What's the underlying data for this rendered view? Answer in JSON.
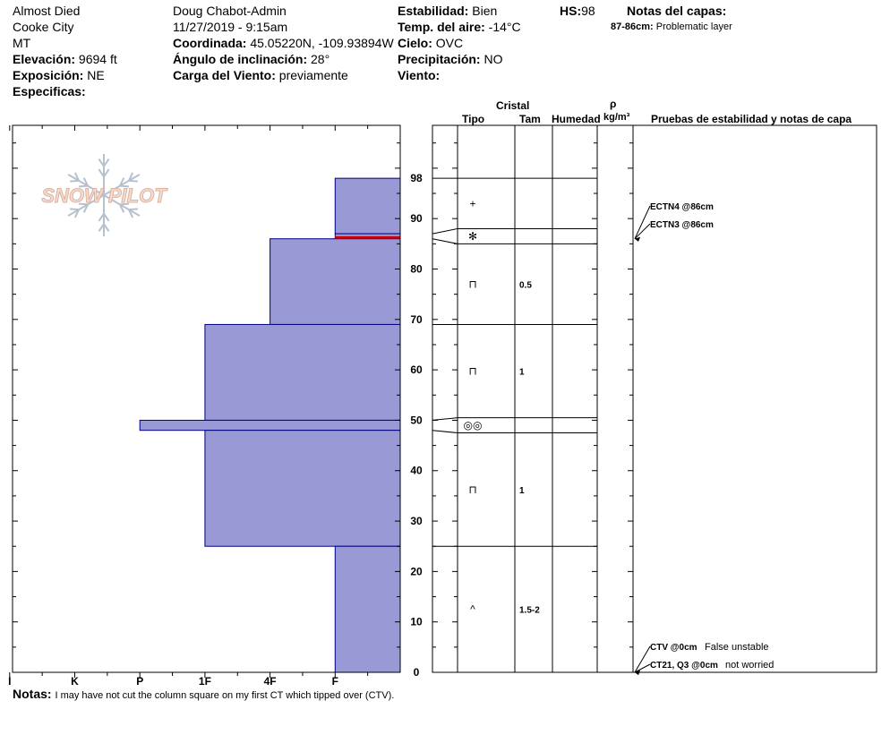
{
  "header": {
    "location": "Almost Died",
    "city": "Cooke City",
    "state": "MT",
    "elevation_label": "Elevación:",
    "elevation_value": "9694 ft",
    "aspect_label": "Exposición:",
    "aspect_value": "NE",
    "specifics_label": "Especificas:",
    "observer": "Doug Chabot-Admin",
    "datetime": "11/27/2019 - 9:15am",
    "coord_label": "Coordinada:",
    "coord_value": "45.05220N, -109.93894W",
    "incline_label": "Ángulo de inclinación:",
    "incline_value": "28°",
    "wind_load_label": "Carga del Viento:",
    "wind_load_value": "previamente",
    "stability_label": "Estabilidad:",
    "stability_value": "Bien",
    "air_temp_label": "Temp. del aire:",
    "air_temp_value": "-14°C",
    "sky_label": "Cielo:",
    "sky_value": "OVC",
    "precip_label": "Precipitación:",
    "precip_value": "NO",
    "wind_label": "Viento:",
    "hs_label": "HS:",
    "hs_value": "98",
    "layer_notes_title": "Notas del capas:",
    "layer_note_range": "87-86cm:",
    "layer_note_text": "Problematic layer"
  },
  "logo_text": "SNOW PILOT",
  "columns": {
    "crystal": "Cristal",
    "type": "Tipo",
    "size": "Tam",
    "moisture": "Humedad",
    "rho": "ρ",
    "density_unit": "kg/m³",
    "tests_title": "Pruebas de estabilidad y notas de capa"
  },
  "notes_label": "Notas:",
  "notes_text": "I may have not cut the column square on my first CT which tipped over (CTV).",
  "colors": {
    "fill": "#9999d6",
    "stroke": "#000080",
    "problem": "#cc0000"
  },
  "chart_data": {
    "type": "bar",
    "orientation": "horizontal",
    "ylim": [
      0,
      98
    ],
    "yticks": [
      0,
      10,
      20,
      30,
      40,
      50,
      60,
      70,
      80,
      90,
      98
    ],
    "hardness_scale": [
      "I",
      "K",
      "P",
      "1F",
      "4F",
      "F"
    ],
    "hardness_scale_index": {
      "F": 1,
      "4F": 2,
      "1F": 3,
      "P": 4,
      "K": 5,
      "I": 6
    },
    "hardness_layers": [
      {
        "top": 98,
        "bottom": 87,
        "hardness": "F"
      },
      {
        "top": 87,
        "bottom": 86,
        "hardness": "F"
      },
      {
        "top": 86,
        "bottom": 69,
        "hardness": "4F"
      },
      {
        "top": 69,
        "bottom": 50,
        "hardness": "1F"
      },
      {
        "top": 50,
        "bottom": 48,
        "hardness": "P"
      },
      {
        "top": 48,
        "bottom": 25,
        "hardness": "1F"
      },
      {
        "top": 25,
        "bottom": 0,
        "hardness": "F"
      }
    ],
    "problem_layer": [
      86.5,
      86
    ],
    "crystal_layers": [
      {
        "top": 98,
        "bottom": 88,
        "mark": "+",
        "size": "",
        "left_top": 98,
        "left_bottom": 87
      },
      {
        "top": 88,
        "bottom": 85,
        "mark": "✻",
        "size": "",
        "left_top": 87,
        "left_bottom": 86
      },
      {
        "top": 85,
        "bottom": 69,
        "mark": "⊓",
        "size": "0.5",
        "left_top": 86,
        "left_bottom": 69
      },
      {
        "top": 69,
        "bottom": 50.5,
        "mark": "⊓",
        "size": "1",
        "left_top": 69,
        "left_bottom": 50
      },
      {
        "top": 50.5,
        "bottom": 47.5,
        "mark": "◎◎",
        "size": "",
        "left_top": 50,
        "left_bottom": 48
      },
      {
        "top": 47.5,
        "bottom": 25,
        "mark": "⊓",
        "size": "1",
        "left_top": 48,
        "left_bottom": 25
      },
      {
        "top": 25,
        "bottom": 0,
        "mark": "^",
        "size": "1.5-2",
        "left_top": 25,
        "left_bottom": 0
      }
    ],
    "stability_tests": [
      {
        "label": "ECTN4 @86cm",
        "depth": 86,
        "comment": ""
      },
      {
        "label": "ECTN3 @86cm",
        "depth": 86,
        "comment": ""
      },
      {
        "label": "CTV @0cm",
        "depth": 0,
        "comment": "False unstable"
      },
      {
        "label": "CT21, Q3 @0cm",
        "depth": 0,
        "comment": "not worried"
      }
    ]
  }
}
